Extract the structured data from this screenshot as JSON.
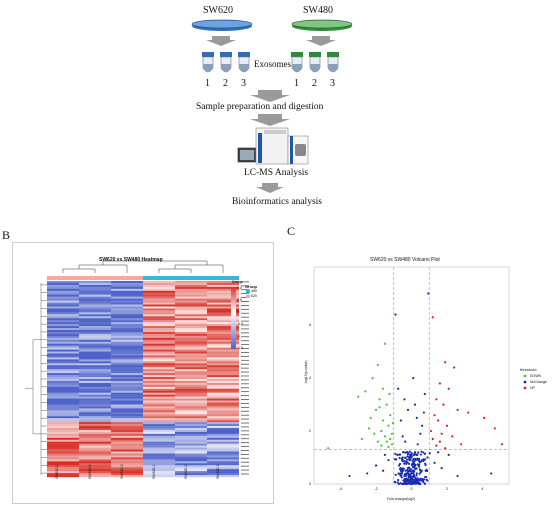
{
  "workflow": {
    "sw620_label": "SW620",
    "sw480_label": "SW480",
    "exosomes_label": "Exosomes",
    "tube_numbers": [
      "1",
      "2",
      "3"
    ],
    "step_sample": "Sample preparation and digestion",
    "step_lcms": "LC-MS Analysis",
    "step_bio": "Bioinformatics analysis",
    "colors": {
      "sw620": "#2f6db8",
      "sw480": "#2f8b3a",
      "arrow": "#9a9a9a"
    }
  },
  "panel_b": {
    "label": "B",
    "title": "SW620 vs SW480 Heatmap",
    "legend_group_title": "Group",
    "legend_groups": [
      "480",
      "620"
    ],
    "legend_scale_title": "Group",
    "scale_ticks": [
      "1.0",
      "0.5",
      "0",
      "-0.5",
      "-1",
      "-1.5"
    ],
    "sample_labels": [
      "SW620-1",
      "SW620-2",
      "SW620-3",
      "SW480-1",
      "SW480-2",
      "SW480-3"
    ],
    "colors": {
      "high": "#d73027",
      "low": "#4e62c9",
      "mid": "#ffffff",
      "grp620": "#f4a9a0",
      "grp480": "#35b8d3"
    }
  },
  "panel_c": {
    "label": "C",
    "title": "SW620 vs SW480 Volcano Plot",
    "xlabel": "Fold change(log2)",
    "ylabel": "-log10(p-value)",
    "legend_title": "threshold",
    "legend_items": [
      {
        "label": "DOWN",
        "color": "#4dc235"
      },
      {
        "label": "NoChange",
        "color": "#1a2db0"
      },
      {
        "label": "UP",
        "color": "#e02020"
      }
    ],
    "x_ticks": [
      "-4",
      "-2",
      "0",
      "2",
      "4"
    ],
    "y_ticks": [
      "0",
      "2",
      "4",
      "6"
    ]
  },
  "chart_data": {
    "type": "scatter",
    "title": "SW620 vs SW480 Volcano Plot",
    "xlabel": "Fold change(log2)",
    "ylabel": "-log10(p-value)",
    "xlim": [
      -5.5,
      5.5
    ],
    "ylim": [
      0,
      8.2
    ],
    "thresholds": {
      "x": [
        -1,
        1
      ],
      "y": 1.3
    },
    "series": [
      {
        "name": "DOWN",
        "color": "#4dc235",
        "points": [
          [
            -1.5,
            5.3
          ],
          [
            -1.9,
            4.5
          ],
          [
            -2.2,
            4.0
          ],
          [
            -2.6,
            3.5
          ],
          [
            -1.8,
            3.2
          ],
          [
            -1.4,
            3.0
          ],
          [
            -2.0,
            2.8
          ],
          [
            -1.2,
            2.6
          ],
          [
            -1.6,
            2.4
          ],
          [
            -1.3,
            2.2
          ],
          [
            -2.4,
            2.1
          ],
          [
            -1.7,
            2.0
          ],
          [
            -1.1,
            1.9
          ],
          [
            -1.5,
            1.8
          ],
          [
            -1.2,
            1.7
          ],
          [
            -1.4,
            1.6
          ],
          [
            -1.9,
            1.6
          ],
          [
            -1.1,
            1.5
          ],
          [
            -1.3,
            1.4
          ],
          [
            -2.8,
            1.7
          ],
          [
            -3.0,
            3.3
          ],
          [
            -1.6,
            3.6
          ],
          [
            -2.3,
            2.5
          ],
          [
            -1.8,
            2.9
          ],
          [
            -1.05,
            2.3
          ],
          [
            -1.25,
            3.4
          ],
          [
            -2.1,
            1.9
          ],
          [
            -1.7,
            1.45
          ],
          [
            -4.7,
            1.35
          ]
        ]
      },
      {
        "name": "NoChange",
        "color": "#1a2db0",
        "points": [
          [
            0.0,
            1.0
          ],
          [
            0.1,
            0.8
          ],
          [
            -0.2,
            0.6
          ],
          [
            0.3,
            0.4
          ],
          [
            -0.4,
            0.3
          ],
          [
            0.5,
            0.2
          ],
          [
            -0.6,
            0.5
          ],
          [
            0.2,
            1.2
          ],
          [
            -0.1,
            0.9
          ],
          [
            0.4,
            0.7
          ],
          [
            -0.3,
            0.2
          ],
          [
            0.6,
            0.9
          ],
          [
            -0.7,
            0.7
          ],
          [
            0.8,
            0.5
          ],
          [
            -0.8,
            1.1
          ],
          [
            0.9,
            1.0
          ],
          [
            -0.5,
            1.0
          ],
          [
            0.0,
            0.4
          ],
          [
            0.15,
            0.1
          ],
          [
            -0.15,
            0.15
          ],
          [
            0.35,
            1.5
          ],
          [
            -0.35,
            1.6
          ],
          [
            0.6,
            2.2
          ],
          [
            -0.6,
            2.4
          ],
          [
            0.2,
            3.0
          ],
          [
            -0.2,
            2.8
          ],
          [
            0.75,
            3.4
          ],
          [
            -0.75,
            3.6
          ],
          [
            0.1,
            4.0
          ],
          [
            -0.9,
            6.4
          ],
          [
            0.95,
            7.2
          ],
          [
            0.5,
            1.9
          ],
          [
            -0.5,
            1.8
          ],
          [
            0.7,
            2.7
          ],
          [
            -0.4,
            3.2
          ],
          [
            0.3,
            2.5
          ],
          [
            -1.3,
            0.9
          ],
          [
            1.3,
            0.8
          ],
          [
            -1.6,
            0.5
          ],
          [
            1.7,
            0.6
          ],
          [
            -2.5,
            0.4
          ],
          [
            2.6,
            0.3
          ],
          [
            -2.0,
            0.7
          ],
          [
            2.1,
            1.1
          ],
          [
            -1.5,
            1.1
          ],
          [
            1.5,
            1.2
          ],
          [
            -3.5,
            0.3
          ],
          [
            4.5,
            0.4
          ]
        ]
      },
      {
        "name": "UP",
        "color": "#e02020",
        "points": [
          [
            1.2,
            6.3
          ],
          [
            1.9,
            4.6
          ],
          [
            2.4,
            4.4
          ],
          [
            1.6,
            3.8
          ],
          [
            2.1,
            3.6
          ],
          [
            1.4,
            3.2
          ],
          [
            1.8,
            3.0
          ],
          [
            2.6,
            2.8
          ],
          [
            1.3,
            2.6
          ],
          [
            1.5,
            2.4
          ],
          [
            2.0,
            2.2
          ],
          [
            1.1,
            2.0
          ],
          [
            1.7,
            1.9
          ],
          [
            2.3,
            1.8
          ],
          [
            1.2,
            1.7
          ],
          [
            1.6,
            1.6
          ],
          [
            2.8,
            1.5
          ],
          [
            3.2,
            2.7
          ],
          [
            4.1,
            2.5
          ],
          [
            4.7,
            2.1
          ],
          [
            5.1,
            1.5
          ],
          [
            1.4,
            1.45
          ],
          [
            1.9,
            1.35
          ]
        ]
      }
    ]
  }
}
